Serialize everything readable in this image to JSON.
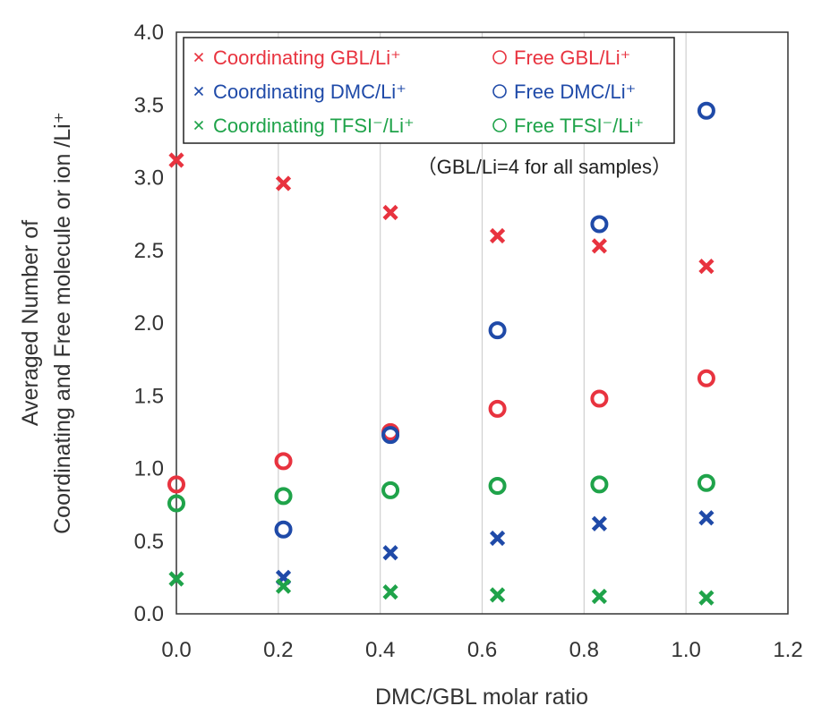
{
  "chart_data": {
    "type": "scatter",
    "title": "",
    "xlabel": "DMC/GBL molar ratio",
    "ylabel_line1": "Averaged Number of",
    "ylabel_line2": "Coordinating and Free molecule or ion /Li⁺",
    "xlim": [
      0.0,
      1.2
    ],
    "ylim": [
      0.0,
      4.0
    ],
    "x_ticks": [
      "0.0",
      "0.2",
      "0.4",
      "0.6",
      "0.8",
      "1.0",
      "1.2"
    ],
    "y_ticks": [
      "0.0",
      "0.5",
      "1.0",
      "1.5",
      "2.0",
      "2.5",
      "3.0",
      "3.5",
      "4.0"
    ],
    "grid": "vertical",
    "legend_position": "top-left",
    "annotation": "（GBL/Li=4 for all samples）",
    "series": [
      {
        "name": "Coordinating GBL/Li⁺",
        "marker": "x",
        "color": "#e8333f",
        "points": [
          [
            0.0,
            3.12
          ],
          [
            0.21,
            2.96
          ],
          [
            0.42,
            2.76
          ],
          [
            0.63,
            2.6
          ],
          [
            0.83,
            2.53
          ],
          [
            1.04,
            2.39
          ]
        ]
      },
      {
        "name": "Free GBL/Li⁺",
        "marker": "o",
        "color": "#e8333f",
        "points": [
          [
            0.0,
            0.89
          ],
          [
            0.21,
            1.05
          ],
          [
            0.42,
            1.25
          ],
          [
            0.63,
            1.41
          ],
          [
            0.83,
            1.48
          ],
          [
            1.04,
            1.62
          ]
        ]
      },
      {
        "name": "Coordinating DMC/Li⁺",
        "marker": "x",
        "color": "#1f4aa8",
        "points": [
          [
            0.21,
            0.25
          ],
          [
            0.42,
            0.42
          ],
          [
            0.63,
            0.52
          ],
          [
            0.83,
            0.62
          ],
          [
            1.04,
            0.66
          ]
        ]
      },
      {
        "name": "Free DMC/Li⁺",
        "marker": "o",
        "color": "#1f4aa8",
        "points": [
          [
            0.21,
            0.58
          ],
          [
            0.42,
            1.23
          ],
          [
            0.63,
            1.95
          ],
          [
            0.83,
            2.68
          ],
          [
            1.04,
            3.46
          ]
        ]
      },
      {
        "name": "Coordinating TFSI⁻/Li⁺",
        "marker": "x",
        "color": "#1fa34a",
        "points": [
          [
            0.0,
            0.24
          ],
          [
            0.21,
            0.19
          ],
          [
            0.42,
            0.15
          ],
          [
            0.63,
            0.13
          ],
          [
            0.83,
            0.12
          ],
          [
            1.04,
            0.11
          ]
        ]
      },
      {
        "name": "Free TFSI⁻/Li⁺",
        "marker": "o",
        "color": "#1fa34a",
        "points": [
          [
            0.0,
            0.76
          ],
          [
            0.21,
            0.81
          ],
          [
            0.42,
            0.85
          ],
          [
            0.63,
            0.88
          ],
          [
            0.83,
            0.89
          ],
          [
            1.04,
            0.9
          ]
        ]
      }
    ]
  }
}
